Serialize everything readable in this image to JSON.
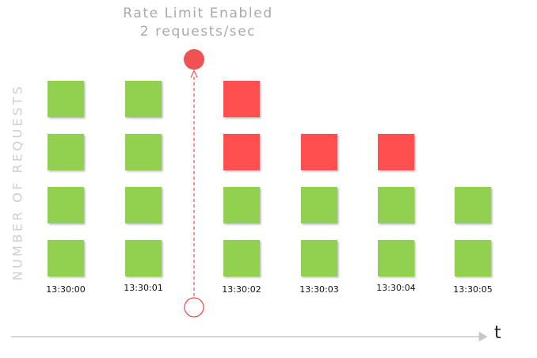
{
  "title": {
    "line1": "Rate Limit Enabled",
    "line2": "2 requests/sec"
  },
  "y_axis_label": "NUMBER OF REQUESTS",
  "x_axis_label": "t",
  "colors": {
    "allowed": "#92d050",
    "rejected": "#ff5050",
    "marker": "#f05252",
    "axis": "#c8c8c8",
    "title": "#a9a9a9"
  },
  "time_slots": [
    {
      "time": "13:30:00",
      "requests": [
        "allowed",
        "allowed",
        "allowed",
        "allowed"
      ]
    },
    {
      "time": "13:30:01",
      "requests": [
        "allowed",
        "allowed",
        "allowed",
        "allowed"
      ]
    },
    {
      "time": "13:30:02",
      "requests": [
        "allowed",
        "allowed",
        "rejected",
        "rejected"
      ]
    },
    {
      "time": "13:30:03",
      "requests": [
        "allowed",
        "allowed",
        "rejected"
      ]
    },
    {
      "time": "13:30:04",
      "requests": [
        "allowed",
        "allowed",
        "rejected"
      ]
    },
    {
      "time": "13:30:05",
      "requests": [
        "allowed",
        "allowed"
      ]
    }
  ]
}
